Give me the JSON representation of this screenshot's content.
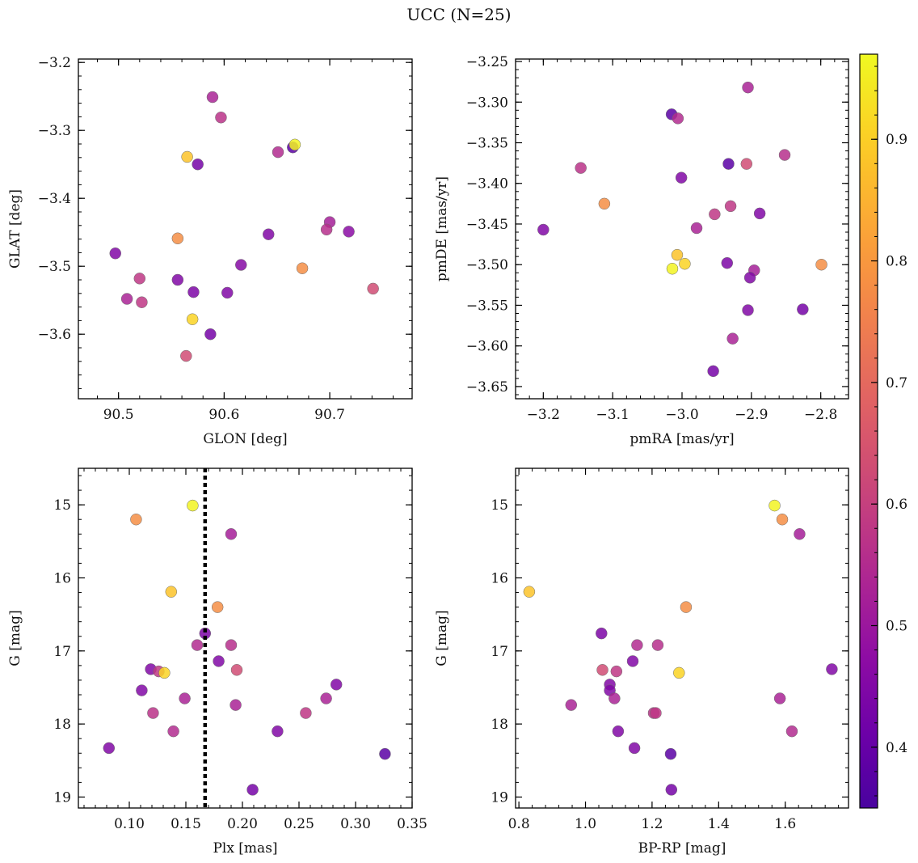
{
  "title": "UCC (N=25)",
  "colorbar": {
    "cmap": "plasma",
    "range": [
      0.35,
      0.97
    ],
    "ticks": [
      0.4,
      0.5,
      0.6,
      0.7,
      0.8,
      0.9
    ],
    "tick_labels": [
      "0.4",
      "0.5",
      "0.6",
      "0.7",
      "0.8",
      "0.9"
    ]
  },
  "chart_data": [
    {
      "type": "scatter",
      "id": "glon-glat",
      "xlabel": "GLON [deg]",
      "ylabel": "GLAT [deg]",
      "xlim": [
        90.462,
        90.778
      ],
      "ylim": [
        -3.695,
        -3.195
      ],
      "invert_y": false,
      "xticks": [
        90.5,
        90.6,
        90.7
      ],
      "xtick_labels": [
        "90.5",
        "90.6",
        "90.7"
      ],
      "yticks": [
        -3.2,
        -3.3,
        -3.4,
        -3.5,
        -3.6
      ],
      "ytick_labels": [
        "−3.2",
        "−3.3",
        "−3.4",
        "−3.5",
        "−3.6"
      ],
      "points": [
        {
          "x": 90.589,
          "y": -3.251,
          "c": 0.53
        },
        {
          "x": 90.597,
          "y": -3.281,
          "c": 0.57
        },
        {
          "x": 90.665,
          "y": -3.325,
          "c": 0.38
        },
        {
          "x": 90.667,
          "y": -3.321,
          "c": 0.96
        },
        {
          "x": 90.651,
          "y": -3.332,
          "c": 0.55
        },
        {
          "x": 90.565,
          "y": -3.339,
          "c": 0.88
        },
        {
          "x": 90.575,
          "y": -3.35,
          "c": 0.43
        },
        {
          "x": 90.7,
          "y": -3.435,
          "c": 0.52
        },
        {
          "x": 90.697,
          "y": -3.446,
          "c": 0.56
        },
        {
          "x": 90.718,
          "y": -3.449,
          "c": 0.47
        },
        {
          "x": 90.642,
          "y": -3.453,
          "c": 0.45
        },
        {
          "x": 90.556,
          "y": -3.459,
          "c": 0.78
        },
        {
          "x": 90.497,
          "y": -3.481,
          "c": 0.45
        },
        {
          "x": 90.616,
          "y": -3.498,
          "c": 0.46
        },
        {
          "x": 90.674,
          "y": -3.503,
          "c": 0.78
        },
        {
          "x": 90.52,
          "y": -3.518,
          "c": 0.58
        },
        {
          "x": 90.556,
          "y": -3.52,
          "c": 0.45
        },
        {
          "x": 90.741,
          "y": -3.533,
          "c": 0.63
        },
        {
          "x": 90.571,
          "y": -3.538,
          "c": 0.44
        },
        {
          "x": 90.603,
          "y": -3.539,
          "c": 0.45
        },
        {
          "x": 90.508,
          "y": -3.548,
          "c": 0.53
        },
        {
          "x": 90.522,
          "y": -3.553,
          "c": 0.58
        },
        {
          "x": 90.57,
          "y": -3.578,
          "c": 0.91
        },
        {
          "x": 90.587,
          "y": -3.6,
          "c": 0.43
        },
        {
          "x": 90.564,
          "y": -3.632,
          "c": 0.63
        }
      ]
    },
    {
      "type": "scatter",
      "id": "pmra-pmde",
      "xlabel": "pmRA [mas/yr]",
      "ylabel": "pmDE [mas/yr]",
      "xlim": [
        -3.24,
        -2.76
      ],
      "ylim": [
        -3.665,
        -3.247
      ],
      "invert_y": false,
      "xticks": [
        -3.2,
        -3.1,
        -3.0,
        -2.9,
        -2.8
      ],
      "xtick_labels": [
        "−3.2",
        "−3.1",
        "−3.0",
        "−2.9",
        "−2.8"
      ],
      "yticks": [
        -3.25,
        -3.3,
        -3.35,
        -3.4,
        -3.45,
        -3.5,
        -3.55,
        -3.6,
        -3.65
      ],
      "ytick_labels": [
        "−3.25",
        "−3.30",
        "−3.35",
        "−3.40",
        "−3.45",
        "−3.50",
        "−3.55",
        "−3.60",
        "−3.65"
      ],
      "points": [
        {
          "x": -2.905,
          "y": -3.282,
          "c": 0.53
        },
        {
          "x": -3.015,
          "y": -3.315,
          "c": 0.38
        },
        {
          "x": -3.006,
          "y": -3.32,
          "c": 0.55
        },
        {
          "x": -2.852,
          "y": -3.365,
          "c": 0.56
        },
        {
          "x": -2.933,
          "y": -3.376,
          "c": 0.38
        },
        {
          "x": -2.907,
          "y": -3.376,
          "c": 0.63
        },
        {
          "x": -3.146,
          "y": -3.381,
          "c": 0.57
        },
        {
          "x": -3.001,
          "y": -3.393,
          "c": 0.45
        },
        {
          "x": -3.112,
          "y": -3.425,
          "c": 0.78
        },
        {
          "x": -2.93,
          "y": -3.428,
          "c": 0.58
        },
        {
          "x": -2.953,
          "y": -3.438,
          "c": 0.58
        },
        {
          "x": -2.888,
          "y": -3.437,
          "c": 0.45
        },
        {
          "x": -2.979,
          "y": -3.455,
          "c": 0.53
        },
        {
          "x": -3.2,
          "y": -3.457,
          "c": 0.45
        },
        {
          "x": -3.007,
          "y": -3.488,
          "c": 0.88
        },
        {
          "x": -2.996,
          "y": -3.499,
          "c": 0.91
        },
        {
          "x": -2.935,
          "y": -3.498,
          "c": 0.44
        },
        {
          "x": -2.799,
          "y": -3.5,
          "c": 0.78
        },
        {
          "x": -3.014,
          "y": -3.505,
          "c": 0.96
        },
        {
          "x": -2.896,
          "y": -3.507,
          "c": 0.52
        },
        {
          "x": -2.902,
          "y": -3.516,
          "c": 0.45
        },
        {
          "x": -2.826,
          "y": -3.555,
          "c": 0.43
        },
        {
          "x": -2.905,
          "y": -3.556,
          "c": 0.45
        },
        {
          "x": -2.927,
          "y": -3.591,
          "c": 0.53
        },
        {
          "x": -2.955,
          "y": -3.631,
          "c": 0.43
        }
      ]
    },
    {
      "type": "scatter",
      "id": "plx-g",
      "xlabel": "Plx [mas]",
      "ylabel": "G [mag]",
      "xlim": [
        0.055,
        0.35
      ],
      "ylim": [
        14.5,
        19.15
      ],
      "invert_y": true,
      "xticks": [
        0.1,
        0.15,
        0.2,
        0.25,
        0.3,
        0.35
      ],
      "xtick_labels": [
        "0.10",
        "0.15",
        "0.20",
        "0.25",
        "0.30",
        "0.35"
      ],
      "yticks": [
        15,
        16,
        17,
        18,
        19
      ],
      "ytick_labels": [
        "15",
        "16",
        "17",
        "18",
        "19"
      ],
      "vline": {
        "x": 0.167,
        "style": "dotted",
        "color": "#000000"
      },
      "points": [
        {
          "x": 0.156,
          "y": 15.01,
          "c": 0.96
        },
        {
          "x": 0.106,
          "y": 15.2,
          "c": 0.78
        },
        {
          "x": 0.19,
          "y": 15.4,
          "c": 0.52
        },
        {
          "x": 0.137,
          "y": 16.19,
          "c": 0.88
        },
        {
          "x": 0.178,
          "y": 16.4,
          "c": 0.78
        },
        {
          "x": 0.167,
          "y": 16.76,
          "c": 0.44
        },
        {
          "x": 0.16,
          "y": 16.92,
          "c": 0.55
        },
        {
          "x": 0.19,
          "y": 16.92,
          "c": 0.56
        },
        {
          "x": 0.179,
          "y": 17.14,
          "c": 0.45
        },
        {
          "x": 0.119,
          "y": 17.25,
          "c": 0.45
        },
        {
          "x": 0.195,
          "y": 17.26,
          "c": 0.63
        },
        {
          "x": 0.126,
          "y": 17.28,
          "c": 0.58
        },
        {
          "x": 0.131,
          "y": 17.3,
          "c": 0.91
        },
        {
          "x": 0.283,
          "y": 17.46,
          "c": 0.45
        },
        {
          "x": 0.111,
          "y": 17.54,
          "c": 0.45
        },
        {
          "x": 0.149,
          "y": 17.65,
          "c": 0.53
        },
        {
          "x": 0.274,
          "y": 17.65,
          "c": 0.53
        },
        {
          "x": 0.194,
          "y": 17.74,
          "c": 0.53
        },
        {
          "x": 0.121,
          "y": 17.85,
          "c": 0.57
        },
        {
          "x": 0.256,
          "y": 17.85,
          "c": 0.58
        },
        {
          "x": 0.231,
          "y": 18.1,
          "c": 0.45
        },
        {
          "x": 0.139,
          "y": 18.1,
          "c": 0.55
        },
        {
          "x": 0.082,
          "y": 18.33,
          "c": 0.45
        },
        {
          "x": 0.326,
          "y": 18.41,
          "c": 0.38
        },
        {
          "x": 0.209,
          "y": 18.9,
          "c": 0.43
        }
      ]
    },
    {
      "type": "scatter",
      "id": "bprp-g",
      "xlabel": "BP-RP [mag]",
      "ylabel": "G [mag]",
      "xlim": [
        0.79,
        1.79
      ],
      "ylim": [
        14.5,
        19.15
      ],
      "invert_y": true,
      "xticks": [
        0.8,
        1.0,
        1.2,
        1.4,
        1.6
      ],
      "xtick_labels": [
        "0.8",
        "1.0",
        "1.2",
        "1.4",
        "1.6"
      ],
      "yticks": [
        15,
        16,
        17,
        18,
        19
      ],
      "ytick_labels": [
        "15",
        "16",
        "17",
        "18",
        "19"
      ],
      "points": [
        {
          "x": 1.568,
          "y": 15.01,
          "c": 0.96
        },
        {
          "x": 1.591,
          "y": 15.2,
          "c": 0.78
        },
        {
          "x": 1.643,
          "y": 15.4,
          "c": 0.52
        },
        {
          "x": 0.831,
          "y": 16.19,
          "c": 0.88
        },
        {
          "x": 1.302,
          "y": 16.4,
          "c": 0.78
        },
        {
          "x": 1.048,
          "y": 16.76,
          "c": 0.44
        },
        {
          "x": 1.155,
          "y": 16.92,
          "c": 0.55
        },
        {
          "x": 1.217,
          "y": 16.92,
          "c": 0.56
        },
        {
          "x": 1.142,
          "y": 17.14,
          "c": 0.45
        },
        {
          "x": 1.74,
          "y": 17.25,
          "c": 0.45
        },
        {
          "x": 1.051,
          "y": 17.26,
          "c": 0.63
        },
        {
          "x": 1.093,
          "y": 17.28,
          "c": 0.58
        },
        {
          "x": 1.281,
          "y": 17.3,
          "c": 0.91
        },
        {
          "x": 1.073,
          "y": 17.46,
          "c": 0.45
        },
        {
          "x": 1.073,
          "y": 17.54,
          "c": 0.45
        },
        {
          "x": 1.087,
          "y": 17.65,
          "c": 0.53
        },
        {
          "x": 1.584,
          "y": 17.65,
          "c": 0.53
        },
        {
          "x": 0.957,
          "y": 17.74,
          "c": 0.53
        },
        {
          "x": 1.205,
          "y": 17.85,
          "c": 0.57
        },
        {
          "x": 1.211,
          "y": 17.85,
          "c": 0.58
        },
        {
          "x": 1.098,
          "y": 18.1,
          "c": 0.45
        },
        {
          "x": 1.62,
          "y": 18.1,
          "c": 0.55
        },
        {
          "x": 1.147,
          "y": 18.33,
          "c": 0.45
        },
        {
          "x": 1.256,
          "y": 18.41,
          "c": 0.38
        },
        {
          "x": 1.258,
          "y": 18.9,
          "c": 0.43
        }
      ]
    }
  ]
}
